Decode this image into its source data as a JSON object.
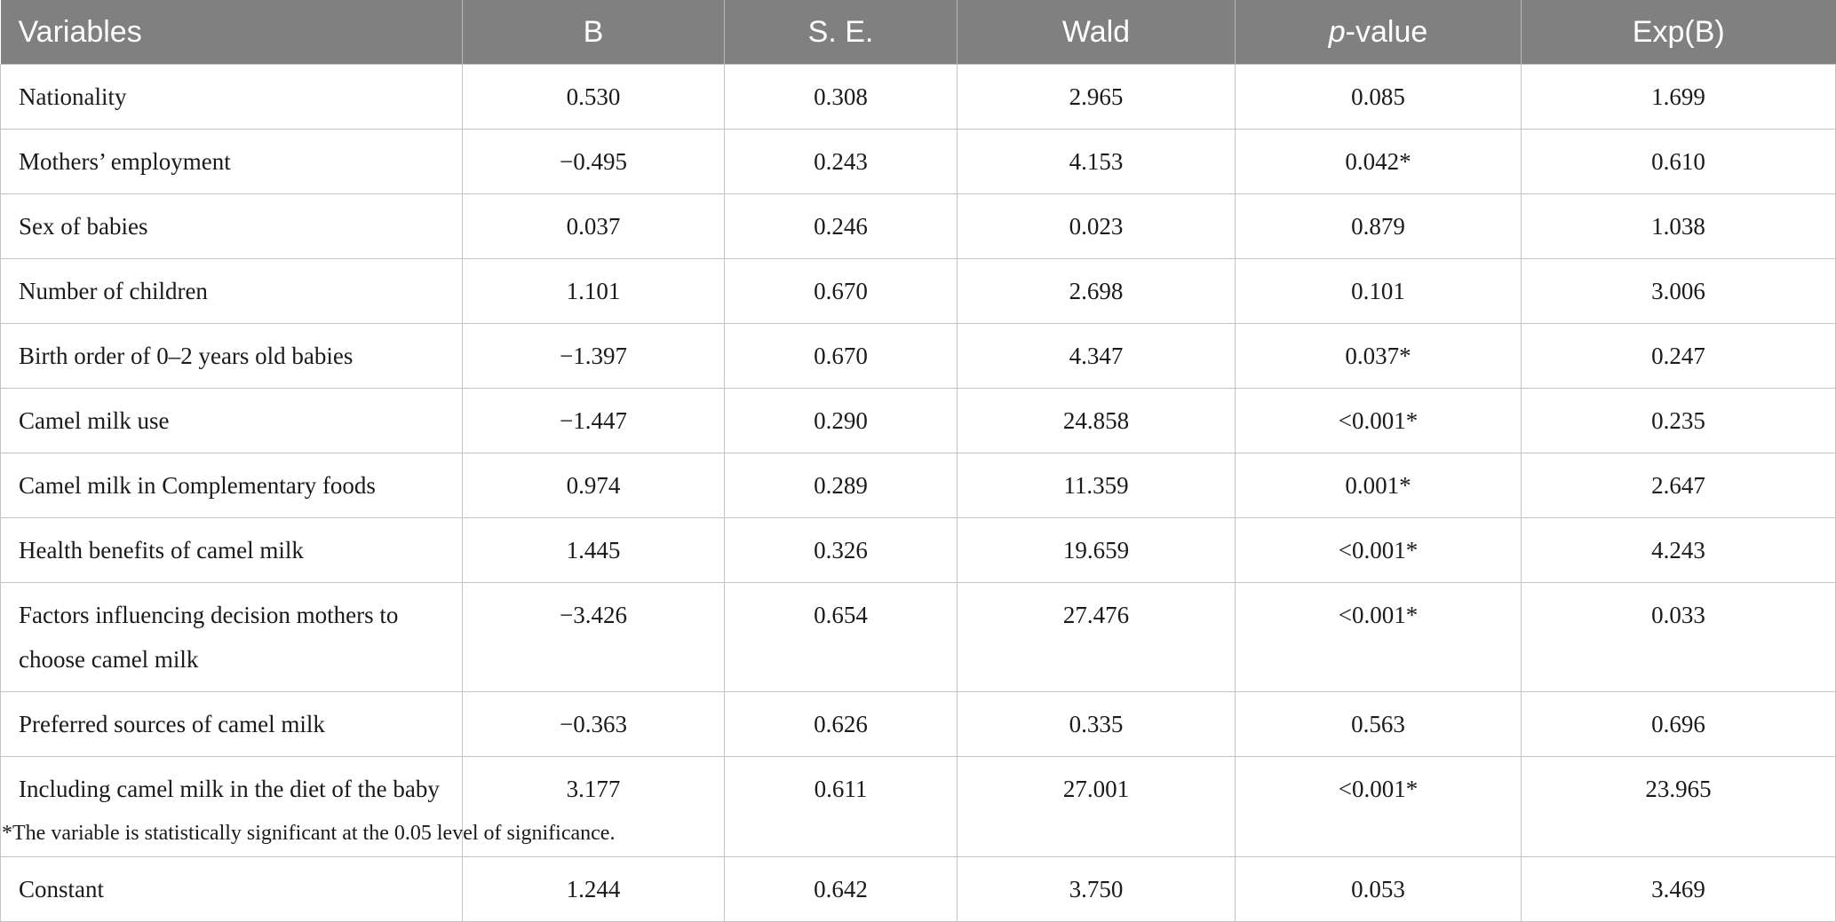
{
  "table": {
    "headers": {
      "variables": "Variables",
      "b": "B",
      "se": "S. E.",
      "wald": "Wald",
      "p_italic": "p",
      "p_rest": "-value",
      "expb": "Exp(B)"
    },
    "rows": [
      {
        "variable": "Nationality",
        "b": "0.530",
        "se": "0.308",
        "wald": "2.965",
        "p": "0.085",
        "expb": "1.699"
      },
      {
        "variable": "Mothers’ employment",
        "b": "−0.495",
        "se": "0.243",
        "wald": "4.153",
        "p": "0.042*",
        "expb": "0.610"
      },
      {
        "variable": "Sex of babies",
        "b": "0.037",
        "se": "0.246",
        "wald": "0.023",
        "p": "0.879",
        "expb": "1.038"
      },
      {
        "variable": "Number of children",
        "b": "1.101",
        "se": "0.670",
        "wald": "2.698",
        "p": "0.101",
        "expb": "3.006"
      },
      {
        "variable": "Birth order of 0–2 years old babies",
        "b": "−1.397",
        "se": "0.670",
        "wald": "4.347",
        "p": "0.037*",
        "expb": "0.247"
      },
      {
        "variable": "Camel milk use",
        "b": "−1.447",
        "se": "0.290",
        "wald": "24.858",
        "p": "<0.001*",
        "expb": "0.235"
      },
      {
        "variable": "Camel milk in Complementary foods",
        "b": "0.974",
        "se": "0.289",
        "wald": "11.359",
        "p": "0.001*",
        "expb": "2.647"
      },
      {
        "variable": "Health benefits of camel milk",
        "b": "1.445",
        "se": "0.326",
        "wald": "19.659",
        "p": "<0.001*",
        "expb": "4.243"
      },
      {
        "variable": "Factors influencing decision mothers to choose camel milk",
        "b": "−3.426",
        "se": "0.654",
        "wald": "27.476",
        "p": "<0.001*",
        "expb": "0.033"
      },
      {
        "variable": "Preferred sources of camel milk",
        "b": "−0.363",
        "se": "0.626",
        "wald": "0.335",
        "p": "0.563",
        "expb": "0.696"
      },
      {
        "variable": "Including camel milk in the diet of the baby",
        "b": "3.177",
        "se": "0.611",
        "wald": "27.001",
        "p": "<0.001*",
        "expb": "23.965"
      },
      {
        "variable": "Constant",
        "b": "1.244",
        "se": "0.642",
        "wald": "3.750",
        "p": "0.053",
        "expb": "3.469"
      }
    ],
    "footnote": "*The variable is statistically significant at the 0.05 level of significance."
  },
  "colors": {
    "header_bg": "#808080",
    "header_text": "#ffffff",
    "grid_line": "#c4c4c4"
  }
}
